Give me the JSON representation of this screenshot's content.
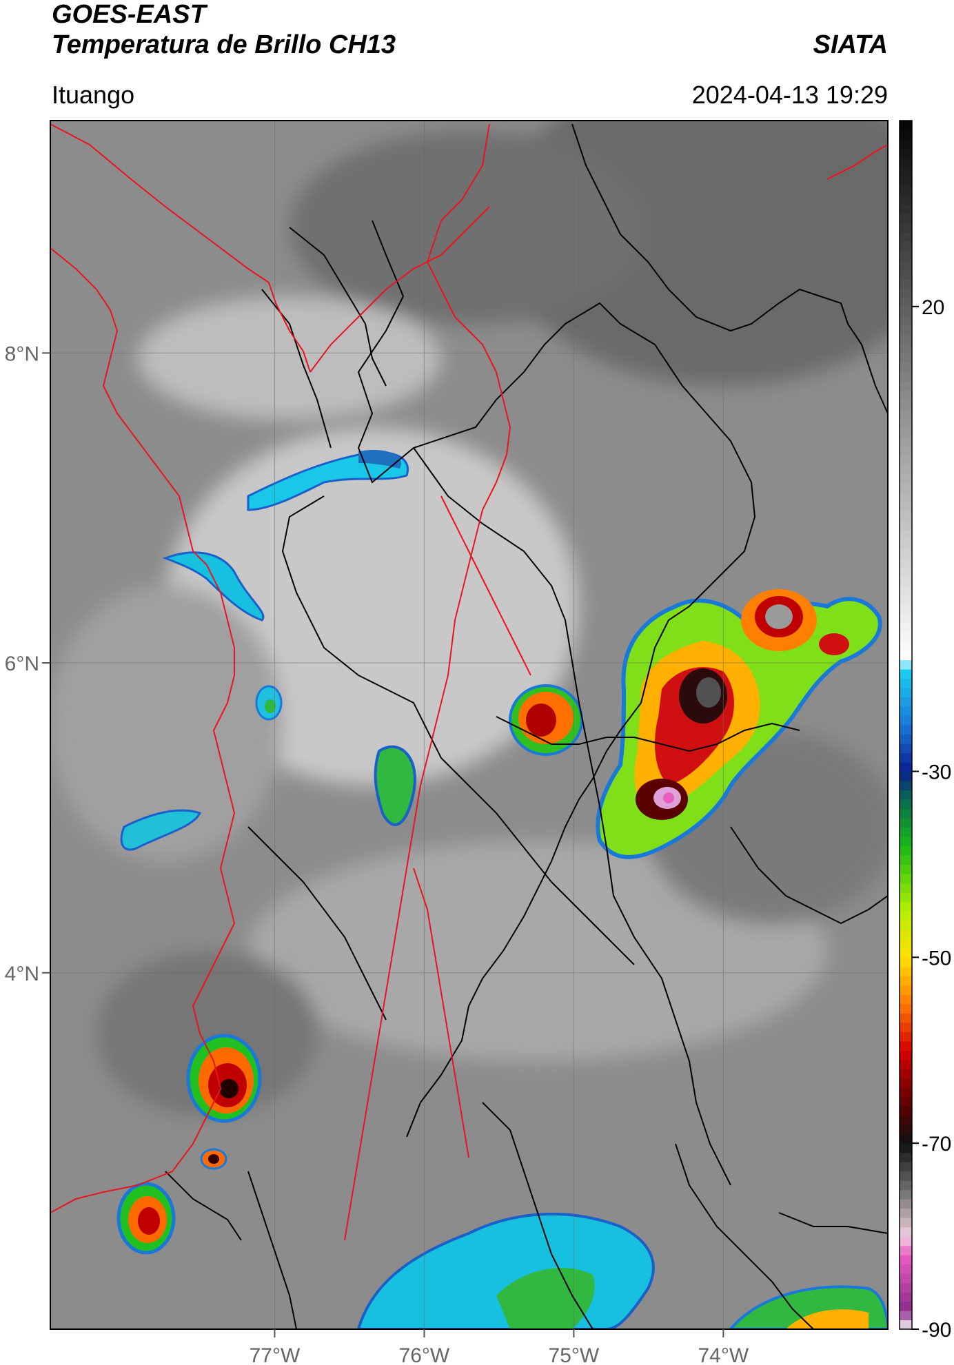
{
  "header": {
    "satellite": "GOES-EAST",
    "product": "Temperatura de Brillo CH13",
    "brand": "SIATA",
    "location": "Ituango",
    "timestamp": "2024-04-13 19:29"
  },
  "map": {
    "lon_range": [
      -78.5,
      -72.9
    ],
    "lat_range": [
      1.7,
      9.5
    ],
    "x_ticks": [
      {
        "value": -77,
        "label": "77°W"
      },
      {
        "value": -76,
        "label": "76°W"
      },
      {
        "value": -75,
        "label": "75°W"
      },
      {
        "value": -74,
        "label": "74°W"
      }
    ],
    "y_ticks": [
      {
        "value": 8,
        "label": "8°N"
      },
      {
        "value": 6,
        "label": "6°N"
      },
      {
        "value": 4,
        "label": "4°N"
      }
    ],
    "grid": true,
    "background_gray": "#8a8a8a",
    "border_red": "#e8141e",
    "border_black": "#000000"
  },
  "colorbar": {
    "range": [
      -90,
      40
    ],
    "ticks": [
      {
        "value": 20,
        "label": "20"
      },
      {
        "value": -30,
        "label": "-30"
      },
      {
        "value": -50,
        "label": "-50"
      },
      {
        "value": -70,
        "label": "-70"
      },
      {
        "value": -90,
        "label": "-90"
      }
    ],
    "stops": [
      {
        "t": -90,
        "color": "#ffffff"
      },
      {
        "t": -88,
        "color": "#8b2c8b"
      },
      {
        "t": -82,
        "color": "#e85fc2"
      },
      {
        "t": -80,
        "color": "#f0d0e0"
      },
      {
        "t": -75,
        "color": "#6e6e6e"
      },
      {
        "t": -70,
        "color": "#111111"
      },
      {
        "t": -66,
        "color": "#5a0000"
      },
      {
        "t": -60,
        "color": "#d40000"
      },
      {
        "t": -55,
        "color": "#ff7a00"
      },
      {
        "t": -50,
        "color": "#ffe000"
      },
      {
        "t": -45,
        "color": "#b4f000"
      },
      {
        "t": -38,
        "color": "#18b818"
      },
      {
        "t": -33,
        "color": "#0a6a50"
      },
      {
        "t": -30,
        "color": "#0a1f8c"
      },
      {
        "t": -25,
        "color": "#1a78d8"
      },
      {
        "t": -19,
        "color": "#19d0f0"
      },
      {
        "t": -18,
        "color": "#ffffff"
      },
      {
        "t": 10,
        "color": "#8c8c8c"
      },
      {
        "t": 40,
        "color": "#050505"
      }
    ]
  },
  "storm_cells": [
    {
      "lon": -74.25,
      "lat": 5.75,
      "r_lon": 0.45,
      "r_lat": 0.55,
      "core": "#2a2a2a"
    },
    {
      "lon": -74.45,
      "lat": 4.95,
      "r_lon": 0.35,
      "r_lat": 0.3,
      "core": "#e060c0"
    },
    {
      "lon": -73.7,
      "lat": 6.25,
      "r_lon": 0.35,
      "r_lat": 0.25,
      "core": "#9a9a9a"
    },
    {
      "lon": -75.25,
      "lat": 5.55,
      "r_lon": 0.22,
      "r_lat": 0.25,
      "core": "#7a0000"
    },
    {
      "lon": -77.35,
      "lat": 3.2,
      "r_lon": 0.22,
      "r_lat": 0.27,
      "core": "#2a0000"
    },
    {
      "lon": -77.8,
      "lat": 2.3,
      "r_lon": 0.15,
      "r_lat": 0.2,
      "core": "#2a0000"
    },
    {
      "lon": -77.45,
      "lat": 2.75,
      "r_lon": 0.07,
      "r_lat": 0.06,
      "core": "#2a0000"
    },
    {
      "lon": -77.1,
      "lat": 5.65,
      "r_lon": 0.08,
      "r_lat": 0.1,
      "core": "#d40000"
    }
  ]
}
